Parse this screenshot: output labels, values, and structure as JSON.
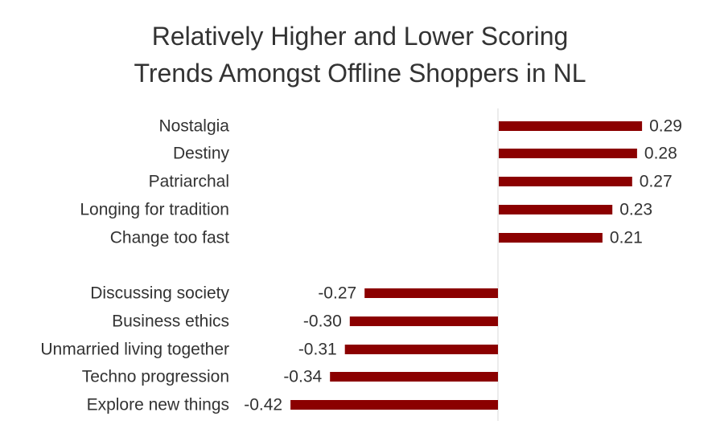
{
  "chart_data": {
    "type": "bar",
    "orientation": "horizontal",
    "title": "Relatively Higher and Lower Scoring\nTrends Amongst Offline Shoppers in NL",
    "xlabel": "",
    "ylabel": "",
    "categories": [
      "Nostalgia",
      "Destiny",
      "Patriarchal",
      "Longing for tradition",
      "Change too fast",
      "Discussing society",
      "Business ethics",
      "Unmarried living together",
      "Techno progression",
      "Explore new things"
    ],
    "values": [
      0.29,
      0.28,
      0.27,
      0.23,
      0.21,
      -0.27,
      -0.3,
      -0.31,
      -0.34,
      -0.42
    ],
    "value_labels": [
      "0.29",
      "0.28",
      "0.27",
      "0.23",
      "0.21",
      "-0.27",
      "-0.30",
      "-0.31",
      "-0.34",
      "-0.42"
    ],
    "bar_color": "#8b0000",
    "axis_line_color": "#d9d9d9",
    "grid": false,
    "legend": "none"
  }
}
